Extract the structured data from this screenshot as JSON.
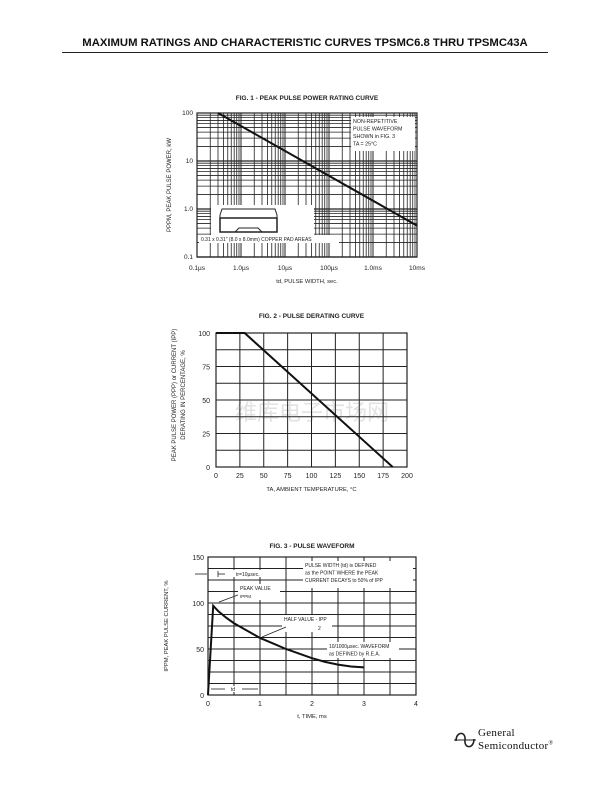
{
  "header": {
    "title": "MAXIMUM RATINGS AND CHARACTERISTIC CURVES TPSMC6.8 THRU TPSMC43A"
  },
  "watermark": "维库电子市场网",
  "logo": {
    "line1": "General",
    "line2": "Semiconductor",
    "mark": "®"
  },
  "chart_data": [
    {
      "type": "line",
      "title": "FIG. 1 - PEAK PULSE POWER RATING CURVE",
      "xlabel": "td, PULSE WIDTH, sec.",
      "ylabel": "PPPM, PEAK PULSE POWER, kW",
      "xscale": "log",
      "yscale": "log",
      "xlim_us": [
        0.1,
        10000
      ],
      "ylim": [
        0.1,
        100
      ],
      "xticks": [
        {
          "v": 0.1,
          "label": "0.1µs"
        },
        {
          "v": 1,
          "label": "1.0µs"
        },
        {
          "v": 10,
          "label": "10µs"
        },
        {
          "v": 100,
          "label": "100µs"
        },
        {
          "v": 1000,
          "label": "1.0ms"
        },
        {
          "v": 10000,
          "label": "10ms"
        }
      ],
      "yticks": [
        {
          "v": 0.1,
          "label": "0.1"
        },
        {
          "v": 1,
          "label": "1.0"
        },
        {
          "v": 10,
          "label": "10"
        },
        {
          "v": 100,
          "label": "100"
        }
      ],
      "series": [
        {
          "name": "Pppm",
          "x": [
            0.3,
            10000
          ],
          "y": [
            100,
            0.45
          ]
        }
      ],
      "annotations": [
        "NON-REPETITIVE",
        "PULSE WAVEFORM",
        "SHOWN in FIG. 3",
        "TA = 25°C"
      ],
      "inset_label": "0.31 x 0.31\" (8.0 x 8.0mm) COPPER PAD AREAS"
    },
    {
      "type": "line",
      "title": "FIG. 2 - PULSE DERATING CURVE",
      "xlabel": "TA, AMBIENT TEMPERATURE, °C",
      "ylabel": [
        "PEAK PULSE POWER (PPP) or CURRENT (IPP)",
        "DERATING IN PERCENTAGE, %"
      ],
      "xlim": [
        0,
        200
      ],
      "ylim": [
        0,
        100
      ],
      "xticks": [
        0,
        25,
        50,
        75,
        100,
        125,
        150,
        175,
        200
      ],
      "yticks": [
        0,
        25,
        50,
        75,
        100
      ],
      "series": [
        {
          "name": "Derating",
          "x": [
            0,
            30,
            185
          ],
          "y": [
            100,
            100,
            0
          ]
        }
      ]
    },
    {
      "type": "line",
      "title": "FIG. 3 - PULSE WAVEFORM",
      "xlabel": "t, TIME, ms",
      "ylabel": "IPPM, PEAK PULSE CURRENT, %",
      "xlim": [
        0,
        4
      ],
      "ylim": [
        0,
        150
      ],
      "xticks": [
        0,
        1,
        2,
        3,
        4
      ],
      "yticks": [
        0,
        50,
        100,
        150
      ],
      "series": [
        {
          "name": "10/1000µsec waveform",
          "x": [
            0,
            0.1,
            0.2,
            0.35,
            0.5,
            0.75,
            1,
            1.25,
            1.5,
            1.75,
            2,
            2.25,
            2.5,
            2.75,
            3
          ],
          "y": [
            0,
            97,
            91,
            84,
            78,
            70,
            62,
            56,
            50,
            45,
            40,
            36,
            33,
            31,
            30
          ]
        }
      ],
      "annotations": {
        "tr": "tr=10µsec.",
        "peak": "PEAK VALUE",
        "peak_sub": "IPPM",
        "half": "HALF VALUE - IPP",
        "half_den": "2",
        "pw": [
          "PULSE WIDTH (td) is DEFINED",
          "as the POINT WHERE the PEAK",
          "CURRENT DECAYS to 50% of IPP"
        ],
        "wave": [
          "10/1000µsec. WAVEFORM",
          "as DEFINED by R.E.A."
        ],
        "td": "td"
      }
    }
  ]
}
